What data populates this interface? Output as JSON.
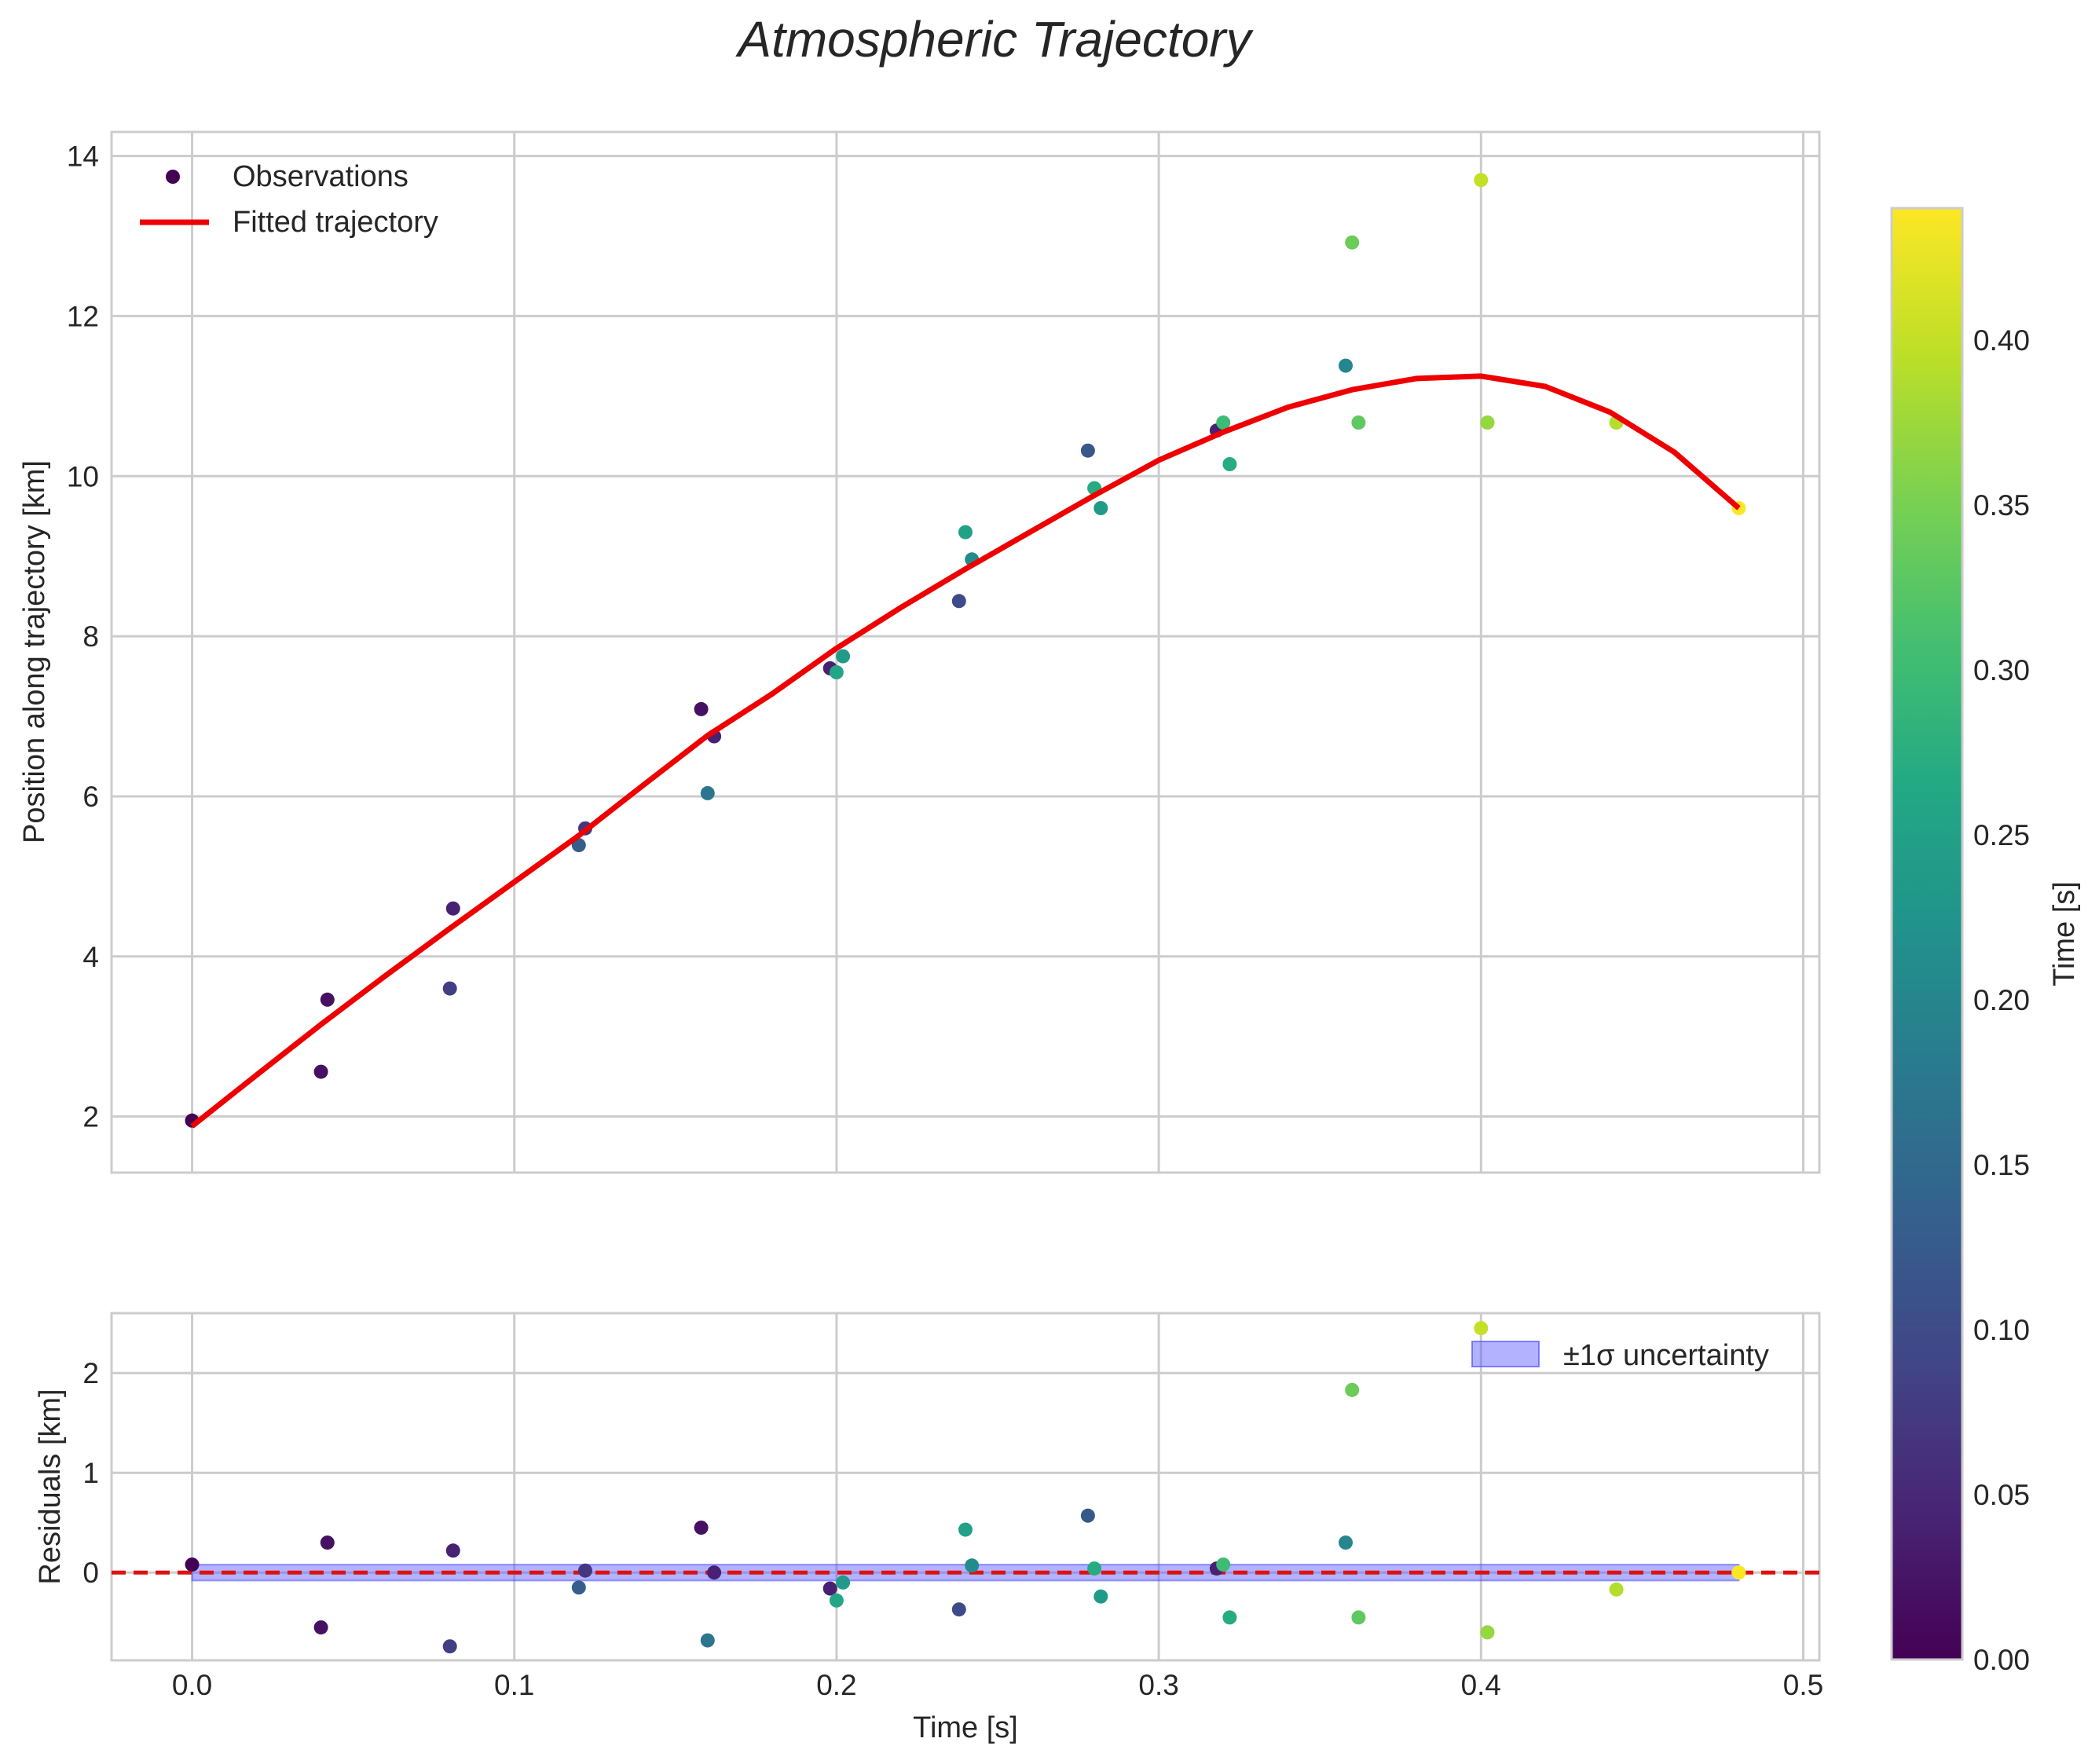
{
  "chart_data": {
    "title": "Atmospheric Trajectory",
    "colormap": "viridis",
    "panels": [
      {
        "type": "scatter+line",
        "ylabel": "Position along trajectory [km]",
        "xlim": [
          -0.025,
          0.505
        ],
        "ylim": [
          1.3,
          14.3
        ],
        "xticks": [
          0.0,
          0.1,
          0.2,
          0.3,
          0.4,
          0.5
        ],
        "yticks": [
          2,
          4,
          6,
          8,
          10,
          12,
          14
        ],
        "ytick_labels": [
          "2",
          "4",
          "6",
          "8",
          "10",
          "12",
          "14"
        ],
        "grid": true,
        "legend": {
          "position": "upper-left",
          "entries": [
            "Observations",
            "Fitted trajectory"
          ]
        }
      },
      {
        "type": "scatter+band",
        "ylabel": "Residuals [km]",
        "xlabel": "Time [s]",
        "xlim": [
          -0.025,
          0.505
        ],
        "ylim": [
          -0.88,
          2.6
        ],
        "xticks": [
          0.0,
          0.1,
          0.2,
          0.3,
          0.4,
          0.5
        ],
        "xtick_labels": [
          "0.0",
          "0.1",
          "0.2",
          "0.3",
          "0.4",
          "0.5"
        ],
        "yticks": [
          0,
          1,
          2
        ],
        "ytick_labels": [
          "0",
          "1",
          "2"
        ],
        "grid": true,
        "zero_line": {
          "y": 0,
          "style": "dashed",
          "color": "#dd1111"
        },
        "band": {
          "label": "±1σ uncertainty",
          "sigma": 0.08,
          "color": "#5555ff"
        },
        "legend": {
          "position": "upper-right",
          "entries": [
            "±1σ uncertainty"
          ]
        }
      }
    ],
    "colorbar": {
      "label": "Time [s]",
      "range": [
        0.0,
        0.44
      ],
      "ticks": [
        0.0,
        0.05,
        0.1,
        0.15,
        0.2,
        0.25,
        0.3,
        0.35,
        0.4
      ],
      "tick_labels": [
        "0.00",
        "0.05",
        "0.10",
        "0.15",
        "0.20",
        "0.25",
        "0.30",
        "0.35",
        "0.40"
      ]
    },
    "fit_curve": {
      "name": "Fitted trajectory",
      "color": "#ee0000",
      "x": [
        0.0,
        0.02,
        0.04,
        0.06,
        0.08,
        0.1,
        0.12,
        0.14,
        0.16,
        0.18,
        0.2,
        0.22,
        0.24,
        0.26,
        0.28,
        0.3,
        0.32,
        0.34,
        0.36,
        0.38,
        0.4,
        0.42,
        0.44,
        0.46,
        0.48
      ],
      "y": [
        1.88,
        2.52,
        3.15,
        3.76,
        4.35,
        4.93,
        5.51,
        6.14,
        6.76,
        7.28,
        7.85,
        8.36,
        8.84,
        9.3,
        9.76,
        10.2,
        10.55,
        10.86,
        11.08,
        11.22,
        11.25,
        11.12,
        10.8,
        10.3,
        9.6
      ]
    },
    "series": [
      {
        "name": "Observations",
        "x": [
          0.0,
          0.04,
          0.042,
          0.081,
          0.08,
          0.12,
          0.122,
          0.158,
          0.16,
          0.162,
          0.198,
          0.2,
          0.202,
          0.238,
          0.24,
          0.242,
          0.278,
          0.28,
          0.282,
          0.318,
          0.32,
          0.322,
          0.358,
          0.36,
          0.362,
          0.4,
          0.402,
          0.442,
          0.48
        ],
        "y": [
          1.95,
          2.56,
          3.46,
          4.6,
          3.6,
          5.39,
          5.6,
          7.09,
          6.04,
          6.75,
          7.6,
          7.55,
          7.75,
          8.44,
          9.3,
          8.96,
          10.32,
          9.85,
          9.6,
          10.57,
          10.67,
          10.15,
          11.38,
          12.92,
          10.67,
          13.7,
          10.67,
          10.67,
          9.6
        ],
        "time": [
          0.0,
          0.02,
          0.02,
          0.04,
          0.08,
          0.13,
          0.07,
          0.02,
          0.17,
          0.04,
          0.04,
          0.26,
          0.24,
          0.1,
          0.25,
          0.21,
          0.12,
          0.27,
          0.24,
          0.04,
          0.3,
          0.27,
          0.2,
          0.34,
          0.33,
          0.4,
          0.37,
          0.39,
          0.44
        ]
      },
      {
        "name": "Residuals",
        "x": [
          0.0,
          0.04,
          0.042,
          0.081,
          0.08,
          0.12,
          0.122,
          0.158,
          0.16,
          0.162,
          0.198,
          0.2,
          0.202,
          0.238,
          0.24,
          0.242,
          0.278,
          0.28,
          0.282,
          0.318,
          0.32,
          0.322,
          0.358,
          0.36,
          0.362,
          0.4,
          0.402,
          0.442,
          0.48
        ],
        "y": [
          0.08,
          -0.55,
          0.3,
          0.22,
          -0.74,
          -0.15,
          0.02,
          0.45,
          -0.68,
          0.0,
          -0.16,
          -0.28,
          -0.1,
          -0.37,
          0.43,
          0.07,
          0.57,
          0.04,
          -0.24,
          0.04,
          0.08,
          -0.45,
          0.3,
          1.83,
          -0.45,
          2.45,
          -0.6,
          -0.17,
          0.0
        ],
        "time": [
          0.0,
          0.02,
          0.02,
          0.04,
          0.08,
          0.13,
          0.07,
          0.02,
          0.17,
          0.04,
          0.04,
          0.26,
          0.24,
          0.1,
          0.25,
          0.21,
          0.12,
          0.27,
          0.24,
          0.04,
          0.3,
          0.27,
          0.2,
          0.34,
          0.33,
          0.4,
          0.37,
          0.39,
          0.44
        ]
      }
    ]
  }
}
